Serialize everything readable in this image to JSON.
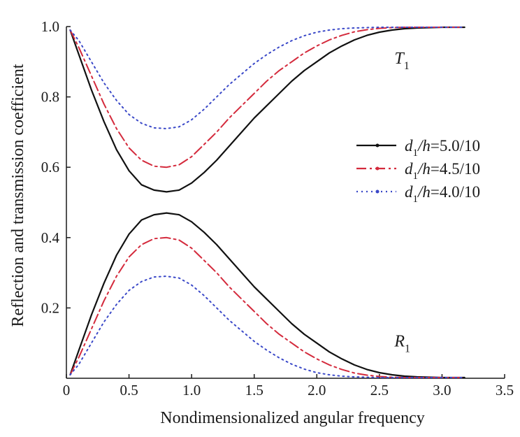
{
  "chart_data": {
    "type": "line",
    "title": "",
    "xlabel": "Nondimensionalized angular frequency",
    "ylabel": "Reflection and transmission coefficient",
    "xlim": [
      0,
      3.5
    ],
    "ylim": [
      0,
      1.0
    ],
    "xticks": [
      "0",
      "0.5",
      "1.0",
      "1.5",
      "2.0",
      "2.5",
      "3.0",
      "3.5"
    ],
    "yticks": [
      "0.2",
      "0.4",
      "0.6",
      "0.8",
      "1.0"
    ],
    "grid": false,
    "legend_position": "center-right",
    "x": [
      0.03,
      0.1,
      0.2,
      0.3,
      0.4,
      0.5,
      0.6,
      0.7,
      0.8,
      0.9,
      1.0,
      1.1,
      1.2,
      1.3,
      1.4,
      1.5,
      1.6,
      1.7,
      1.8,
      1.9,
      2.0,
      2.1,
      2.2,
      2.3,
      2.4,
      2.5,
      2.6,
      2.7,
      2.8,
      2.9,
      3.0,
      3.1,
      3.18
    ],
    "series": [
      {
        "name": "d1/h=5.0/10",
        "sub": "1",
        "label_prefix": "d",
        "label_mid": "/h",
        "label_suffix": "=5.0/10",
        "color": "#111111",
        "style": "solid",
        "T": [
          0.99,
          0.92,
          0.82,
          0.73,
          0.65,
          0.59,
          0.55,
          0.535,
          0.53,
          0.535,
          0.555,
          0.585,
          0.62,
          0.66,
          0.7,
          0.74,
          0.775,
          0.81,
          0.845,
          0.875,
          0.9,
          0.925,
          0.945,
          0.962,
          0.975,
          0.984,
          0.99,
          0.994,
          0.996,
          0.997,
          0.998,
          0.998,
          0.998
        ],
        "R": [
          0.01,
          0.08,
          0.18,
          0.27,
          0.35,
          0.41,
          0.45,
          0.465,
          0.47,
          0.465,
          0.445,
          0.415,
          0.38,
          0.34,
          0.3,
          0.26,
          0.225,
          0.19,
          0.155,
          0.125,
          0.1,
          0.075,
          0.055,
          0.038,
          0.025,
          0.016,
          0.01,
          0.006,
          0.004,
          0.003,
          0.002,
          0.002,
          0.002
        ]
      },
      {
        "name": "d1/h=4.5/10",
        "sub": "1",
        "label_prefix": "d",
        "label_mid": "/h",
        "label_suffix": "=4.5/10",
        "color": "#d42a3c",
        "style": "dashdot",
        "T": [
          0.99,
          0.94,
          0.86,
          0.78,
          0.71,
          0.655,
          0.62,
          0.603,
          0.6,
          0.607,
          0.63,
          0.665,
          0.7,
          0.74,
          0.775,
          0.81,
          0.845,
          0.875,
          0.9,
          0.925,
          0.945,
          0.962,
          0.975,
          0.985,
          0.991,
          0.995,
          0.997,
          0.998,
          0.998,
          0.998,
          0.998,
          0.998,
          0.998
        ],
        "R": [
          0.01,
          0.06,
          0.14,
          0.22,
          0.29,
          0.345,
          0.38,
          0.397,
          0.4,
          0.393,
          0.37,
          0.335,
          0.3,
          0.26,
          0.225,
          0.19,
          0.155,
          0.125,
          0.1,
          0.075,
          0.055,
          0.038,
          0.025,
          0.015,
          0.009,
          0.005,
          0.003,
          0.002,
          0.002,
          0.002,
          0.002,
          0.002,
          0.002
        ]
      },
      {
        "name": "d1/h=4.0/10",
        "sub": "1",
        "label_prefix": "d",
        "label_mid": "/h",
        "label_suffix": "=4.0/10",
        "color": "#3a48c8",
        "style": "dotted",
        "T": [
          0.99,
          0.96,
          0.9,
          0.84,
          0.79,
          0.75,
          0.725,
          0.712,
          0.71,
          0.715,
          0.735,
          0.765,
          0.8,
          0.835,
          0.865,
          0.895,
          0.92,
          0.942,
          0.96,
          0.974,
          0.984,
          0.99,
          0.994,
          0.996,
          0.997,
          0.998,
          0.998,
          0.998,
          0.998,
          0.998,
          0.998,
          0.998,
          0.998
        ],
        "R": [
          0.01,
          0.04,
          0.1,
          0.16,
          0.21,
          0.25,
          0.275,
          0.288,
          0.29,
          0.285,
          0.265,
          0.235,
          0.2,
          0.165,
          0.135,
          0.105,
          0.08,
          0.058,
          0.04,
          0.026,
          0.016,
          0.01,
          0.006,
          0.004,
          0.003,
          0.002,
          0.002,
          0.002,
          0.002,
          0.002,
          0.002,
          0.002,
          0.002
        ]
      }
    ],
    "annotations": [
      {
        "letter": "T",
        "sub": "1",
        "x": 2.62,
        "y": 0.895
      },
      {
        "letter": "R",
        "sub": "1",
        "x": 2.62,
        "y": 0.09
      }
    ]
  }
}
